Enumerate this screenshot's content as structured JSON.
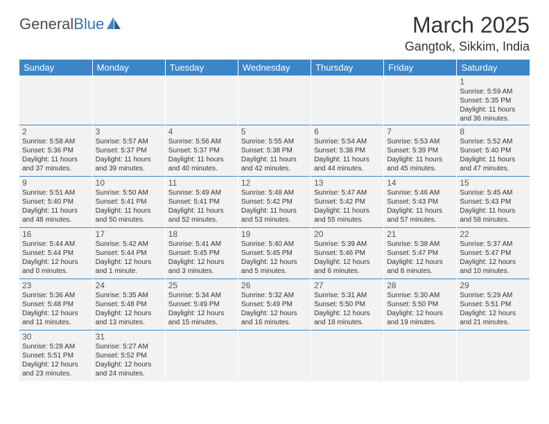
{
  "logo": {
    "text_dark": "General",
    "text_blue": "Blue"
  },
  "title": "March 2025",
  "location": "Gangtok, Sikkim, India",
  "colors": {
    "header_bg": "#3b86c6",
    "header_text": "#ffffff",
    "cell_bg": "#f2f2f2",
    "cell_border": "#3b86c6",
    "text": "#333333",
    "logo_dark": "#4a4a4a",
    "logo_blue": "#2f76b8"
  },
  "weekdays": [
    "Sunday",
    "Monday",
    "Tuesday",
    "Wednesday",
    "Thursday",
    "Friday",
    "Saturday"
  ],
  "days": {
    "1": {
      "sunrise": "5:59 AM",
      "sunset": "5:35 PM",
      "daylight": "11 hours and 36 minutes."
    },
    "2": {
      "sunrise": "5:58 AM",
      "sunset": "5:36 PM",
      "daylight": "11 hours and 37 minutes."
    },
    "3": {
      "sunrise": "5:57 AM",
      "sunset": "5:37 PM",
      "daylight": "11 hours and 39 minutes."
    },
    "4": {
      "sunrise": "5:56 AM",
      "sunset": "5:37 PM",
      "daylight": "11 hours and 40 minutes."
    },
    "5": {
      "sunrise": "5:55 AM",
      "sunset": "5:38 PM",
      "daylight": "11 hours and 42 minutes."
    },
    "6": {
      "sunrise": "5:54 AM",
      "sunset": "5:38 PM",
      "daylight": "11 hours and 44 minutes."
    },
    "7": {
      "sunrise": "5:53 AM",
      "sunset": "5:39 PM",
      "daylight": "11 hours and 45 minutes."
    },
    "8": {
      "sunrise": "5:52 AM",
      "sunset": "5:40 PM",
      "daylight": "11 hours and 47 minutes."
    },
    "9": {
      "sunrise": "5:51 AM",
      "sunset": "5:40 PM",
      "daylight": "11 hours and 48 minutes."
    },
    "10": {
      "sunrise": "5:50 AM",
      "sunset": "5:41 PM",
      "daylight": "11 hours and 50 minutes."
    },
    "11": {
      "sunrise": "5:49 AM",
      "sunset": "5:41 PM",
      "daylight": "11 hours and 52 minutes."
    },
    "12": {
      "sunrise": "5:48 AM",
      "sunset": "5:42 PM",
      "daylight": "11 hours and 53 minutes."
    },
    "13": {
      "sunrise": "5:47 AM",
      "sunset": "5:42 PM",
      "daylight": "11 hours and 55 minutes."
    },
    "14": {
      "sunrise": "5:46 AM",
      "sunset": "5:43 PM",
      "daylight": "11 hours and 57 minutes."
    },
    "15": {
      "sunrise": "5:45 AM",
      "sunset": "5:43 PM",
      "daylight": "11 hours and 58 minutes."
    },
    "16": {
      "sunrise": "5:44 AM",
      "sunset": "5:44 PM",
      "daylight": "12 hours and 0 minutes."
    },
    "17": {
      "sunrise": "5:42 AM",
      "sunset": "5:44 PM",
      "daylight": "12 hours and 1 minute."
    },
    "18": {
      "sunrise": "5:41 AM",
      "sunset": "5:45 PM",
      "daylight": "12 hours and 3 minutes."
    },
    "19": {
      "sunrise": "5:40 AM",
      "sunset": "5:45 PM",
      "daylight": "12 hours and 5 minutes."
    },
    "20": {
      "sunrise": "5:39 AM",
      "sunset": "5:46 PM",
      "daylight": "12 hours and 6 minutes."
    },
    "21": {
      "sunrise": "5:38 AM",
      "sunset": "5:47 PM",
      "daylight": "12 hours and 8 minutes."
    },
    "22": {
      "sunrise": "5:37 AM",
      "sunset": "5:47 PM",
      "daylight": "12 hours and 10 minutes."
    },
    "23": {
      "sunrise": "5:36 AM",
      "sunset": "5:48 PM",
      "daylight": "12 hours and 11 minutes."
    },
    "24": {
      "sunrise": "5:35 AM",
      "sunset": "5:48 PM",
      "daylight": "12 hours and 13 minutes."
    },
    "25": {
      "sunrise": "5:34 AM",
      "sunset": "5:49 PM",
      "daylight": "12 hours and 15 minutes."
    },
    "26": {
      "sunrise": "5:32 AM",
      "sunset": "5:49 PM",
      "daylight": "12 hours and 16 minutes."
    },
    "27": {
      "sunrise": "5:31 AM",
      "sunset": "5:50 PM",
      "daylight": "12 hours and 18 minutes."
    },
    "28": {
      "sunrise": "5:30 AM",
      "sunset": "5:50 PM",
      "daylight": "12 hours and 19 minutes."
    },
    "29": {
      "sunrise": "5:29 AM",
      "sunset": "5:51 PM",
      "daylight": "12 hours and 21 minutes."
    },
    "30": {
      "sunrise": "5:28 AM",
      "sunset": "5:51 PM",
      "daylight": "12 hours and 23 minutes."
    },
    "31": {
      "sunrise": "5:27 AM",
      "sunset": "5:52 PM",
      "daylight": "12 hours and 24 minutes."
    }
  },
  "grid": [
    [
      null,
      null,
      null,
      null,
      null,
      null,
      "1"
    ],
    [
      "2",
      "3",
      "4",
      "5",
      "6",
      "7",
      "8"
    ],
    [
      "9",
      "10",
      "11",
      "12",
      "13",
      "14",
      "15"
    ],
    [
      "16",
      "17",
      "18",
      "19",
      "20",
      "21",
      "22"
    ],
    [
      "23",
      "24",
      "25",
      "26",
      "27",
      "28",
      "29"
    ],
    [
      "30",
      "31",
      null,
      null,
      null,
      null,
      null
    ]
  ],
  "labels": {
    "sunrise": "Sunrise: ",
    "sunset": "Sunset: ",
    "daylight": "Daylight: "
  }
}
